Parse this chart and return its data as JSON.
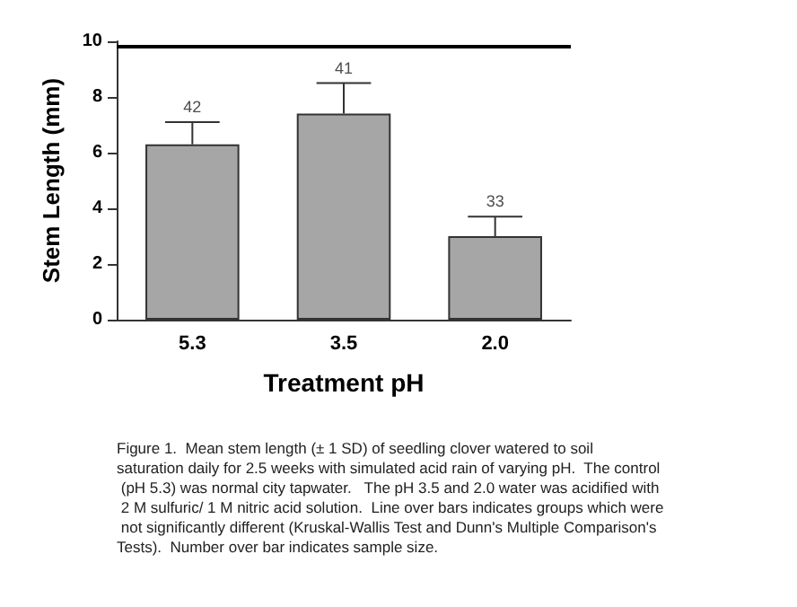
{
  "chart_data": {
    "type": "bar",
    "xlabel": "Treatment pH",
    "ylabel": "Stem Length (mm)",
    "categories": [
      "5.3",
      "3.5",
      "2.0"
    ],
    "values": [
      6.3,
      7.4,
      3.0
    ],
    "errors": [
      0.8,
      1.1,
      0.7
    ],
    "color": "#a6a6a6",
    "ylim": [
      0,
      10
    ],
    "yticks": [
      0,
      2,
      4,
      6,
      8,
      10
    ],
    "grid": false,
    "ref_lines": [
      {
        "axis": "y",
        "value": 9.8,
        "color": "#000000"
      }
    ],
    "annotations": [
      {
        "text": "42",
        "x": "5.3",
        "y": 7.1
      },
      {
        "text": "41",
        "x": "3.5",
        "y": 8.5
      },
      {
        "text": "33",
        "x": "2.0",
        "y": 3.7
      },
      "Figure 1.  Mean stem length (± 1 SD) of seedling clover watered to soil saturation daily for 2.5 weeks with simulated acid rain of varying pH.  The control (pH 5.3) was normal city tapwater.   The pH 3.5 and 2.0 water was acidified with 2 M sulfuric/ 1 M nitric acid solution.  Line over bars indicates groups which were not significantly different (Kruskal-Wallis Test and Dunn's Multiple Comparison's Tests).  Number over bar indicates sample size."
    ]
  }
}
